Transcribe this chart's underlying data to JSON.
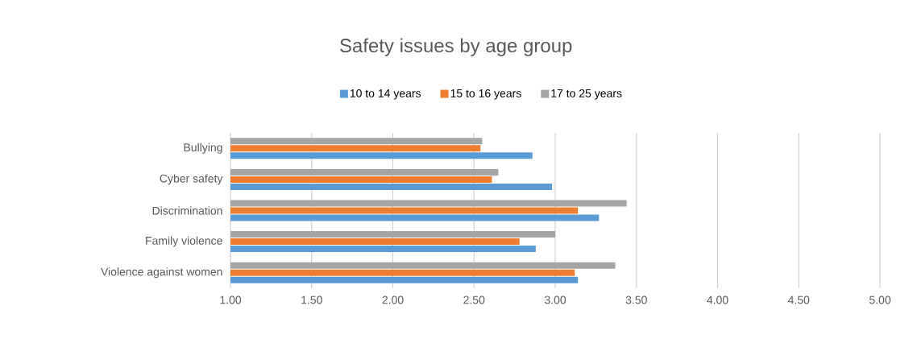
{
  "chart_data": {
    "type": "bar",
    "orientation": "horizontal",
    "title": "Safety issues by age group",
    "categories": [
      "Bullying",
      "Cyber safety",
      "Discrimination",
      "Family violence",
      "Violence against women"
    ],
    "series": [
      {
        "name": "10 to 14 years",
        "color": "#5b9bd5",
        "values": [
          2.86,
          2.98,
          3.27,
          2.88,
          3.14
        ]
      },
      {
        "name": "15 to 16 years",
        "color": "#ed7d31",
        "values": [
          2.54,
          2.61,
          3.14,
          2.78,
          3.12
        ]
      },
      {
        "name": "17 to 25 years",
        "color": "#a5a5a5",
        "values": [
          2.55,
          2.65,
          3.44,
          3.0,
          3.37
        ]
      }
    ],
    "xlim": [
      1,
      5
    ],
    "xticks": [
      {
        "value": 1,
        "label": "1.00"
      },
      {
        "value": 1.5,
        "label": "1.50"
      },
      {
        "value": 2,
        "label": "2.00"
      },
      {
        "value": 2.5,
        "label": "2.50"
      },
      {
        "value": 3,
        "label": "3.00"
      },
      {
        "value": 3.5,
        "label": "3.50"
      },
      {
        "value": 4,
        "label": "4.00"
      },
      {
        "value": 4.5,
        "label": "4.50"
      },
      {
        "value": 5,
        "label": "5.00"
      }
    ],
    "grid": "x",
    "legend": "top"
  }
}
